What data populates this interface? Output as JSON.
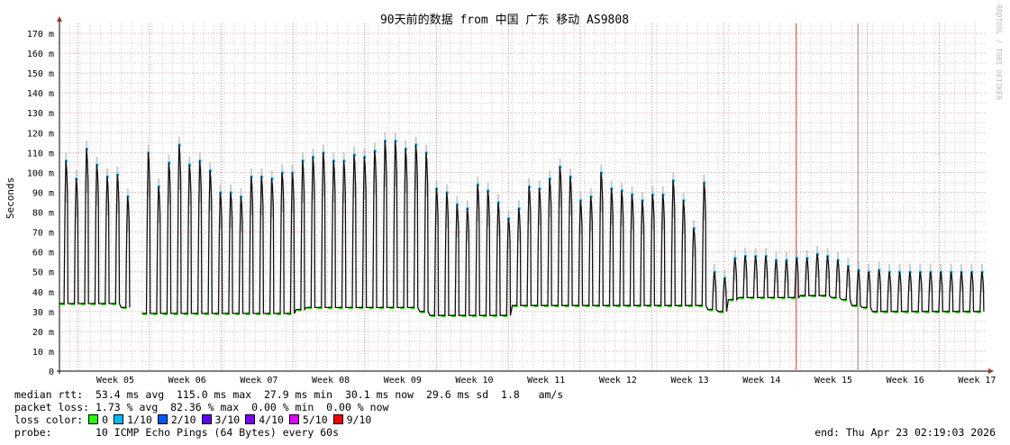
{
  "chart_data": {
    "type": "line",
    "title": "90天前的数据 from  中国 广东 移动 AS9808",
    "ylabel": "Seconds",
    "ylim": [
      0,
      175
    ],
    "y_ticks": [
      "0",
      "10 m",
      "20 m",
      "30 m",
      "40 m",
      "50 m",
      "60 m",
      "70 m",
      "80 m",
      "90 m",
      "100 m",
      "110 m",
      "120 m",
      "130 m",
      "140 m",
      "150 m",
      "160 m",
      "170 m"
    ],
    "x_ticks": [
      "Week 05",
      "Week 06",
      "Week 07",
      "Week 08",
      "Week 09",
      "Week 10",
      "Week 11",
      "Week 12",
      "Week 13",
      "Week 14",
      "Week 15",
      "Week 16",
      "Week 17"
    ],
    "x_range": [
      "2026-01-23 02:19:03",
      "2026-04-23 02:19:03"
    ],
    "grid": true,
    "series": [
      {
        "daily_peak_ms": [
          106,
          97,
          112,
          104,
          98,
          99,
          88,
          null,
          110,
          93,
          105,
          114,
          104,
          106,
          101,
          90,
          90,
          88,
          98,
          98,
          97,
          100,
          100,
          106,
          108,
          110,
          106,
          106,
          109,
          108,
          111,
          116,
          116,
          112,
          114,
          110,
          92,
          90,
          84,
          82,
          94,
          91,
          85,
          77,
          82,
          93,
          92,
          97,
          103,
          98,
          86,
          88,
          100,
          92,
          91,
          89,
          86,
          89,
          89,
          96,
          86,
          72,
          95,
          50,
          47,
          57,
          58,
          58,
          58,
          56,
          56,
          57,
          57,
          59,
          58,
          56,
          53,
          51,
          50,
          51,
          50,
          50,
          50,
          50,
          50,
          50,
          50,
          50,
          50,
          50
        ],
        "daily_base_ms": [
          34,
          34,
          34,
          34,
          34,
          34,
          32,
          null,
          29,
          29,
          29,
          29,
          29,
          29,
          29,
          29,
          29,
          29,
          29,
          29,
          29,
          29,
          29,
          31,
          32,
          32,
          32,
          32,
          32,
          32,
          32,
          32,
          32,
          32,
          32,
          30,
          28,
          28,
          28,
          28,
          28,
          28,
          28,
          28,
          33,
          33,
          33,
          33,
          33,
          33,
          33,
          33,
          33,
          33,
          33,
          33,
          33,
          33,
          33,
          33,
          33,
          33,
          33,
          31,
          30,
          36,
          37,
          37,
          37,
          37,
          37,
          37,
          38,
          38,
          38,
          37,
          36,
          33,
          32,
          30,
          30,
          30,
          30,
          30,
          30,
          30,
          30,
          30,
          30,
          30
        ]
      }
    ],
    "event_lines": [
      {
        "day": 71.6,
        "color": "#e08080"
      },
      {
        "day": 77.6,
        "color": "#c0a0a0"
      }
    ]
  },
  "legend": {
    "median_rtt": "median rtt:  53.4 ms avg  115.0 ms max  27.9 ms min  30.1 ms now  29.6 ms sd  1.8   am/s",
    "packet_loss": "packet loss: 1.73 % avg  82.36 % max  0.00 % min  0.00 % now",
    "loss_color_label": "loss color:",
    "loss_colors": [
      {
        "label": "0",
        "color": "#26ff00"
      },
      {
        "label": "1/10",
        "color": "#00b8ff"
      },
      {
        "label": "2/10",
        "color": "#0059ff"
      },
      {
        "label": "3/10",
        "color": "#5e00ff"
      },
      {
        "label": "4/10",
        "color": "#7e00ff"
      },
      {
        "label": "5/10",
        "color": "#dd00ff"
      },
      {
        "label": "9/10",
        "color": "#ff0000"
      }
    ],
    "probe": "probe:       10 ICMP Echo Pings (64 Bytes) every 60s",
    "end": "end: Thu Apr 23 02:19:03 2026"
  },
  "watermark": "RRDTOOL / TOBI OETIKER"
}
